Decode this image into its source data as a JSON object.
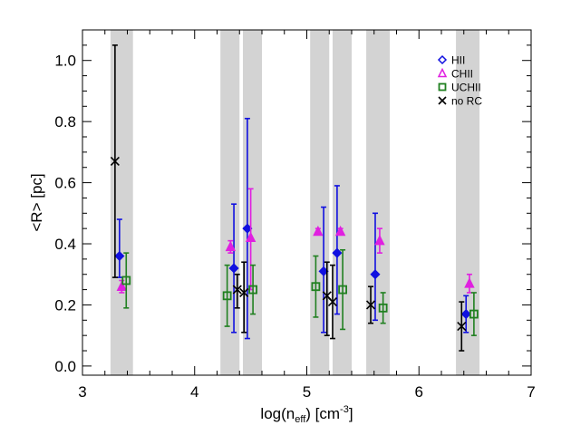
{
  "chart_data": {
    "type": "scatter",
    "title": "",
    "xlabel": {
      "main": "log(n",
      "sub": "eff",
      "rest": ") [cm",
      "sup": "-3",
      "close": "]"
    },
    "ylabel": "<R> [pc]",
    "xlim": [
      3,
      7
    ],
    "ylim": [
      -0.03,
      1.1
    ],
    "x_ticks": [
      "3",
      "4",
      "5",
      "6",
      "7"
    ],
    "y_ticks": [
      "0.0",
      "0.2",
      "0.4",
      "0.6",
      "0.8",
      "1.0"
    ],
    "legend_position": "top-right",
    "shaded_bins": [
      [
        3.25,
        3.45
      ],
      [
        4.23,
        4.4
      ],
      [
        4.43,
        4.6
      ],
      [
        5.03,
        5.2
      ],
      [
        5.23,
        5.4
      ],
      [
        5.53,
        5.74
      ],
      [
        6.33,
        6.54
      ]
    ],
    "shade_color": "#d3d3d3",
    "series": [
      {
        "name": "HII",
        "marker": "diamond",
        "color": "#1010e0",
        "filled": true,
        "points": [
          {
            "x": 3.33,
            "y": 0.36,
            "lo": 0.29,
            "hi": 0.48
          },
          {
            "x": 4.35,
            "y": 0.32,
            "lo": 0.11,
            "hi": 0.53
          },
          {
            "x": 4.47,
            "y": 0.45,
            "lo": 0.09,
            "hi": 0.81
          },
          {
            "x": 5.15,
            "y": 0.31,
            "lo": 0.11,
            "hi": 0.52
          },
          {
            "x": 5.27,
            "y": 0.37,
            "lo": 0.17,
            "hi": 0.59
          },
          {
            "x": 5.61,
            "y": 0.3,
            "lo": 0.15,
            "hi": 0.5
          },
          {
            "x": 6.42,
            "y": 0.17,
            "lo": 0.11,
            "hi": 0.23
          }
        ]
      },
      {
        "name": "CHII",
        "marker": "triangle",
        "color": "#e020e0",
        "filled": true,
        "points": [
          {
            "x": 3.35,
            "y": 0.26,
            "lo": 0.24,
            "hi": 0.28
          },
          {
            "x": 4.32,
            "y": 0.39,
            "lo": 0.37,
            "hi": 0.41
          },
          {
            "x": 4.5,
            "y": 0.42,
            "lo": 0.25,
            "hi": 0.58
          },
          {
            "x": 5.1,
            "y": 0.44,
            "lo": 0.43,
            "hi": 0.45
          },
          {
            "x": 5.3,
            "y": 0.44,
            "lo": 0.43,
            "hi": 0.45
          },
          {
            "x": 5.65,
            "y": 0.41,
            "lo": 0.37,
            "hi": 0.45
          },
          {
            "x": 6.45,
            "y": 0.27,
            "lo": 0.24,
            "hi": 0.3
          }
        ]
      },
      {
        "name": "UCHII",
        "marker": "square",
        "color": "#208020",
        "filled": false,
        "points": [
          {
            "x": 3.39,
            "y": 0.28,
            "lo": 0.19,
            "hi": 0.37
          },
          {
            "x": 4.29,
            "y": 0.23,
            "lo": 0.13,
            "hi": 0.33
          },
          {
            "x": 4.52,
            "y": 0.25,
            "lo": 0.17,
            "hi": 0.33
          },
          {
            "x": 5.08,
            "y": 0.26,
            "lo": 0.16,
            "hi": 0.36
          },
          {
            "x": 5.32,
            "y": 0.25,
            "lo": 0.12,
            "hi": 0.38
          },
          {
            "x": 5.68,
            "y": 0.19,
            "lo": 0.14,
            "hi": 0.24
          },
          {
            "x": 6.49,
            "y": 0.17,
            "lo": 0.1,
            "hi": 0.24
          }
        ]
      },
      {
        "name": "no RC",
        "marker": "x",
        "color": "#000000",
        "filled": false,
        "points": [
          {
            "x": 3.29,
            "y": 0.67,
            "lo": 0.29,
            "hi": 1.05
          },
          {
            "x": 4.38,
            "y": 0.25,
            "lo": 0.19,
            "hi": 0.3
          },
          {
            "x": 4.44,
            "y": 0.24,
            "lo": 0.11,
            "hi": 0.34
          },
          {
            "x": 5.18,
            "y": 0.23,
            "lo": 0.1,
            "hi": 0.34
          },
          {
            "x": 5.23,
            "y": 0.21,
            "lo": 0.09,
            "hi": 0.33
          },
          {
            "x": 5.57,
            "y": 0.2,
            "lo": 0.14,
            "hi": 0.26
          },
          {
            "x": 6.38,
            "y": 0.13,
            "lo": 0.05,
            "hi": 0.21
          }
        ]
      }
    ]
  }
}
